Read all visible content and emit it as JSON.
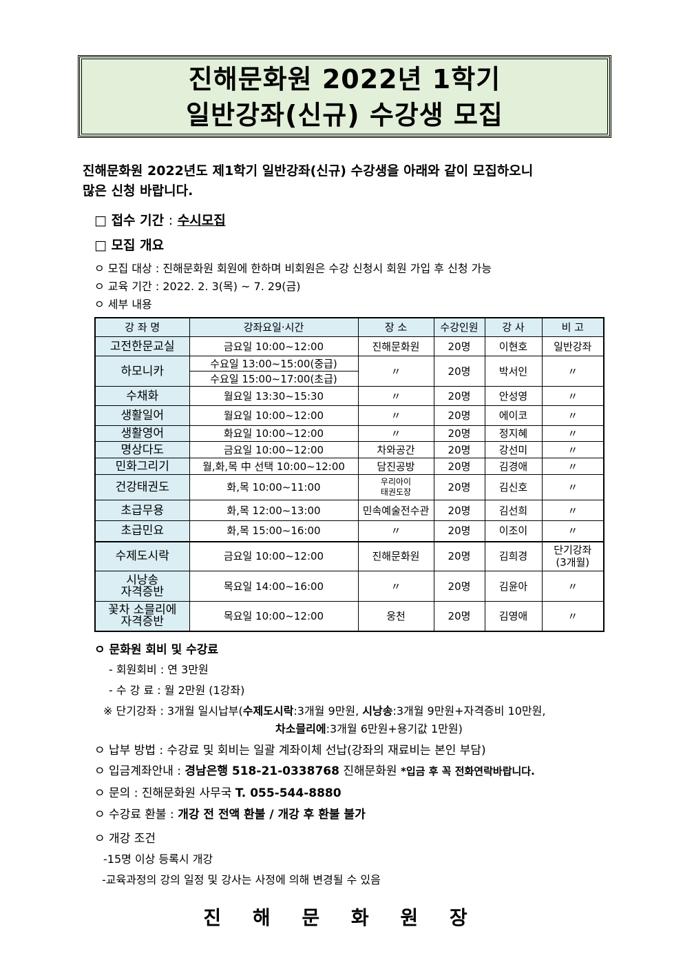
{
  "title": {
    "line1": "진해문화원 2022년 1학기",
    "line2": "일반강좌(신규) 수강생 모집",
    "bg_color": "#e2efd9"
  },
  "intro": {
    "line1": "진해문화원 2022년도 제1학기 일반강좌(신규) 수강생을 아래와 같이 모집하오니",
    "line2": "많은 신청 바랍니다."
  },
  "reception": {
    "label": "□ 접수 기간",
    "sep": ":",
    "value": "수시모집"
  },
  "overview": {
    "label": "□ 모집 개요",
    "target": "ㅇ 모집 대상 : 진해문화원 회원에 한하며 비회원은 수강 신청시 회원 가입 후 신청 가능",
    "period": "ㅇ 교육 기간 : 2022. 2. 3(목) ~ 7. 29(금)",
    "details": "ㅇ 세부 내용"
  },
  "table": {
    "header_color": "#daeef3",
    "headers": [
      "강 좌 명",
      "강좌요일·시간",
      "장  소",
      "수강인원",
      "강 사",
      "비 고"
    ],
    "rows": [
      {
        "name": "고전한문교실",
        "time": "금요일  10:00~12:00",
        "place": "진해문화원",
        "count": "20명",
        "teacher": "이현호",
        "note": "일반강좌"
      },
      {
        "name": "하모니카",
        "time": "수요일  13:00~15:00(중급)",
        "time2": "수요일  15:00~17:00(초급)",
        "place": "〃",
        "count": "20명",
        "teacher": "박서인",
        "note": "〃"
      },
      {
        "name": "수채화",
        "time": "월요일  13:30~15:30",
        "place": "〃",
        "count": "20명",
        "teacher": "안성영",
        "note": "〃"
      },
      {
        "name": "생활일어",
        "time": "월요일  10:00~12:00",
        "place": "〃",
        "count": "20명",
        "teacher": "에이코",
        "note": "〃"
      },
      {
        "name": "생활영어",
        "time": "화요일  10:00~12:00",
        "place": "〃",
        "count": "20명",
        "teacher": "정지혜",
        "note": "〃"
      },
      {
        "name": "명상다도",
        "time": "금요일  10:00~12:00",
        "place": "차와공간",
        "count": "20명",
        "teacher": "강선미",
        "note": "〃"
      },
      {
        "name": "민화그리기",
        "time": "월,화,목 中 선택 10:00~12:00",
        "place": "담진공방",
        "count": "20명",
        "teacher": "김경애",
        "note": "〃"
      },
      {
        "name": "건강태권도",
        "time": "화,목  10:00~11:00",
        "place": "우리아이",
        "place2": "태권도장",
        "count": "20명",
        "teacher": "김신호",
        "note": "〃"
      },
      {
        "name": "초급무용",
        "time": "화,목  12:00~13:00",
        "place": "민속예술전수관",
        "count": "20명",
        "teacher": "김선희",
        "note": "〃"
      },
      {
        "name": "초급민요",
        "time": "화,목  15:00~16:00",
        "place": "〃",
        "count": "20명",
        "teacher": "이조이",
        "note": "〃"
      },
      {
        "name": "수제도시락",
        "time": "금요일  10:00~12:00",
        "place": "진해문화원",
        "count": "20명",
        "teacher": "김희경",
        "note": "단기강좌",
        "note2": "(3개월)"
      },
      {
        "name": "시낭송",
        "name2": "자격증반",
        "time": "목요일  14:00~16:00",
        "place": "〃",
        "count": "20명",
        "teacher": "김윤아",
        "note": "〃"
      },
      {
        "name": "꽃차 소믈리에",
        "name2": "자격증반",
        "time": "목요일  10:00~12:00",
        "place": "웅천",
        "count": "20명",
        "teacher": "김영애",
        "note": "〃"
      }
    ]
  },
  "fees": {
    "label": "ㅇ 문화원 회비 및 수강료",
    "membership": "- 회원회비 : 연 3만원",
    "tuition": "- 수 강 료 : 월 2만원 (1강좌)",
    "short_prefix": "※ 단기강좌 : 3개월 일시납부(",
    "short_b1": "수제도시락",
    "short_t1": ":3개월 9만원, ",
    "short_b2": "시낭송",
    "short_t2": ":3개월 9만원+자격증비 10만원,",
    "short_b3": "차소믈리에",
    "short_t3": ":3개월 6만원+용기값 1만원)"
  },
  "payment": "ㅇ 납부 방법 : 수강료 및 회비는 일괄 계좌이체 선납(강좌의 재료비는 본인 부담)",
  "account": {
    "prefix": "ㅇ 입금계좌안내 : ",
    "bank": "경남은행 518-21-0338768",
    "holder": " 진해문화원  ",
    "note": "*입금 후 꼭 전화연락바랍니다."
  },
  "inquiry": {
    "prefix": "ㅇ 문의 : 진해문화원 사무국 ",
    "phone": "T. 055-544-8880"
  },
  "refund": {
    "prefix": "ㅇ 수강료 환불 : ",
    "value": "개강 전 전액 환불 / 개강 후 환불 불가"
  },
  "conditions": {
    "label": "ㅇ 개강 조건",
    "c1": "-15명 이상 등록시 개강",
    "c2": "-교육과정의 강의 일정 및 강사는 사정에 의해 변경될 수 있음"
  },
  "signature": "진 해 문 화 원 장"
}
